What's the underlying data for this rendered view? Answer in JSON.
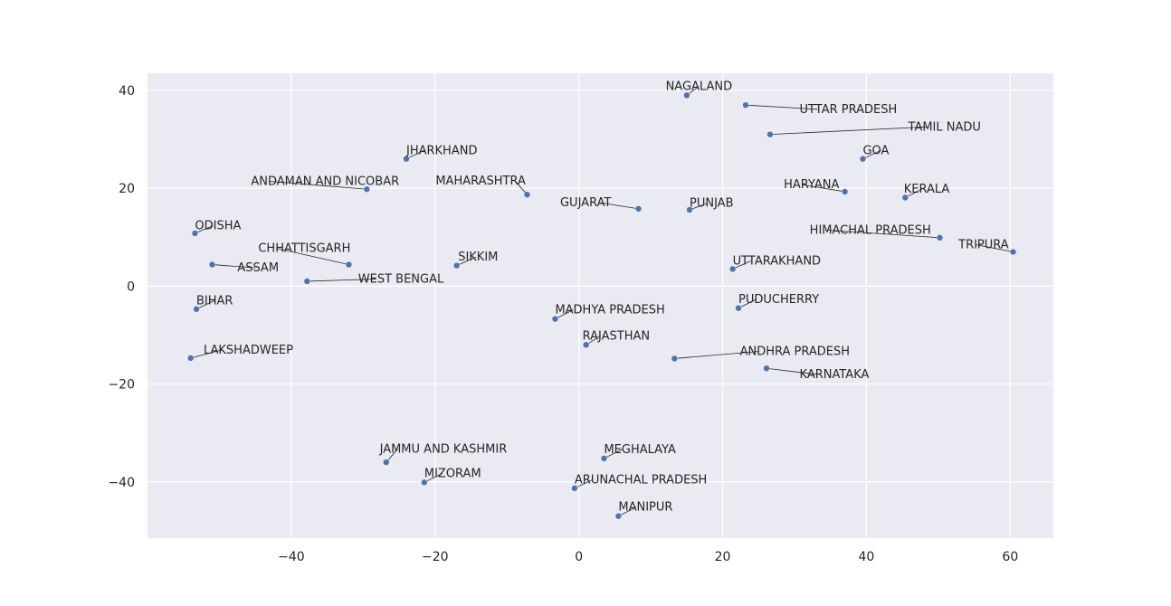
{
  "chart_data": {
    "type": "scatter",
    "title": "",
    "xlabel": "",
    "ylabel": "",
    "xlim": [
      -60,
      66
    ],
    "ylim": [
      -51.5,
      43.5
    ],
    "x_ticks": [
      -40,
      -20,
      0,
      20,
      40,
      60
    ],
    "y_ticks": [
      40,
      20,
      0,
      -20,
      -40
    ],
    "grid": true,
    "colors": {
      "background": "#eaeaf2",
      "grid": "#ffffff",
      "point": "#4c72b0",
      "leader": "#262626",
      "text": "#262626"
    },
    "points": [
      {
        "label": "NAGALAND",
        "x": 15.0,
        "y": 39.0,
        "tx": 16.7,
        "ty": 40.1,
        "anchor": "middle"
      },
      {
        "label": "UTTAR PRADESH",
        "x": 23.2,
        "y": 37.0,
        "tx": 30.7,
        "ty": 35.4,
        "anchor": "start"
      },
      {
        "label": "TAMIL NADU",
        "x": 26.6,
        "y": 31.0,
        "tx": 45.8,
        "ty": 31.8,
        "anchor": "start"
      },
      {
        "label": "GOA",
        "x": 39.5,
        "y": 26.0,
        "tx": 39.5,
        "ty": 27.0,
        "anchor": "start"
      },
      {
        "label": "JHARKHAND",
        "x": -24.0,
        "y": 26.0,
        "tx": -24.0,
        "ty": 27.0,
        "anchor": "start"
      },
      {
        "label": "ANDAMAN AND NICOBAR",
        "x": -29.5,
        "y": 19.8,
        "tx": -45.6,
        "ty": 20.7,
        "anchor": "start"
      },
      {
        "label": "MAHARASHTRA",
        "x": -7.2,
        "y": 18.7,
        "tx": -7.4,
        "ty": 20.8,
        "anchor": "end"
      },
      {
        "label": "HARYANA",
        "x": 37.0,
        "y": 19.3,
        "tx": 28.5,
        "ty": 20.0,
        "anchor": "start"
      },
      {
        "label": "KERALA",
        "x": 45.4,
        "y": 18.1,
        "tx": 45.2,
        "ty": 19.1,
        "anchor": "start"
      },
      {
        "label": "GUJARAT",
        "x": 8.3,
        "y": 15.8,
        "tx": 4.5,
        "ty": 16.3,
        "anchor": "end"
      },
      {
        "label": "PUNJAB",
        "x": 15.4,
        "y": 15.6,
        "tx": 15.4,
        "ty": 16.2,
        "anchor": "start"
      },
      {
        "label": "ODISHA",
        "x": -53.4,
        "y": 10.8,
        "tx": -53.4,
        "ty": 11.6,
        "anchor": "start"
      },
      {
        "label": "HIMACHAL PRADESH",
        "x": 50.2,
        "y": 9.9,
        "tx": 32.1,
        "ty": 10.7,
        "anchor": "start"
      },
      {
        "label": "TRIPURA",
        "x": 60.4,
        "y": 7.0,
        "tx": 52.8,
        "ty": 7.7,
        "anchor": "start"
      },
      {
        "label": "CHHATTISGARH",
        "x": -32.0,
        "y": 4.4,
        "tx": -44.6,
        "ty": 7.0,
        "anchor": "start"
      },
      {
        "label": "ASSAM",
        "x": -51.0,
        "y": 4.4,
        "tx": -47.5,
        "ty": 3.0,
        "anchor": "start"
      },
      {
        "label": "SIKKIM",
        "x": -17.0,
        "y": 4.2,
        "tx": -16.8,
        "ty": 5.2,
        "anchor": "start"
      },
      {
        "label": "UTTARAKHAND",
        "x": 21.4,
        "y": 3.5,
        "tx": 21.4,
        "ty": 4.4,
        "anchor": "start"
      },
      {
        "label": "WEST BENGAL",
        "x": -37.8,
        "y": 1.0,
        "tx": -30.7,
        "ty": 0.7,
        "anchor": "start"
      },
      {
        "label": "BIHAR",
        "x": -53.2,
        "y": -4.7,
        "tx": -53.2,
        "ty": -3.7,
        "anchor": "start"
      },
      {
        "label": "PUDUCHERRY",
        "x": 22.2,
        "y": -4.5,
        "tx": 22.2,
        "ty": -3.4,
        "anchor": "start"
      },
      {
        "label": "MADHYA PRADESH",
        "x": -3.3,
        "y": -6.7,
        "tx": -3.3,
        "ty": -5.6,
        "anchor": "start"
      },
      {
        "label": "RAJASTHAN",
        "x": 1.0,
        "y": -12.0,
        "tx": 0.5,
        "ty": -10.9,
        "anchor": "start"
      },
      {
        "label": "LAKSHADWEEP",
        "x": -54.0,
        "y": -14.7,
        "tx": -52.2,
        "ty": -13.8,
        "anchor": "start"
      },
      {
        "label": "ANDHRA PRADESH",
        "x": 13.3,
        "y": -14.8,
        "tx": 22.4,
        "ty": -14.1,
        "anchor": "start"
      },
      {
        "label": "KARNATAKA",
        "x": 26.1,
        "y": -16.8,
        "tx": 30.7,
        "ty": -18.8,
        "anchor": "start"
      },
      {
        "label": "JAMMU AND KASHMIR",
        "x": -26.8,
        "y": -36.0,
        "tx": -27.7,
        "ty": -34.0,
        "anchor": "start"
      },
      {
        "label": "MEGHALAYA",
        "x": 3.5,
        "y": -35.2,
        "tx": 3.5,
        "ty": -34.1,
        "anchor": "start"
      },
      {
        "label": "MIZORAM",
        "x": -21.5,
        "y": -40.1,
        "tx": -21.5,
        "ty": -39.0,
        "anchor": "start"
      },
      {
        "label": "ARUNACHAL PRADESH",
        "x": -0.6,
        "y": -41.3,
        "tx": -0.6,
        "ty": -40.3,
        "anchor": "start"
      },
      {
        "label": "MANIPUR",
        "x": 5.5,
        "y": -47.0,
        "tx": 5.5,
        "ty": -45.9,
        "anchor": "start"
      }
    ]
  }
}
